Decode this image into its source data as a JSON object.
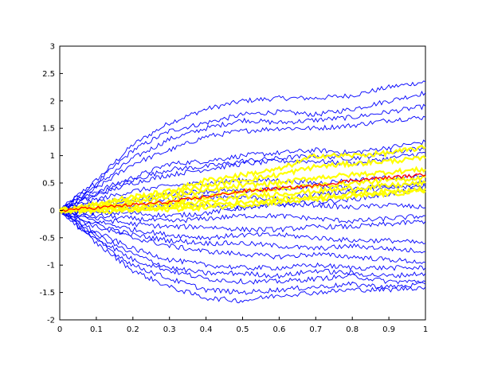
{
  "chart_data": {
    "type": "line",
    "title": "",
    "xlabel": "",
    "ylabel": "",
    "xlim": [
      0,
      1
    ],
    "ylim": [
      -2,
      3
    ],
    "grid": false,
    "legend": "none",
    "x_ticks": [
      0,
      0.1,
      0.2,
      0.3,
      0.4,
      0.5,
      0.6,
      0.7,
      0.8,
      0.9,
      1
    ],
    "x_tick_labels": [
      "0",
      "0.1",
      "0.2",
      "0.3",
      "0.4",
      "0.5",
      "0.6",
      "0.7",
      "0.8",
      "0.9",
      "1"
    ],
    "y_ticks": [
      -2,
      -1.5,
      -1,
      -0.5,
      0,
      0.5,
      1,
      1.5,
      2,
      2.5,
      3
    ],
    "y_tick_labels": [
      "-2",
      "-1.5",
      "-1",
      "-0.5",
      "0",
      "0.5",
      "1",
      "1.5",
      "2",
      "2.5",
      "3"
    ],
    "x": [
      0,
      0.1,
      0.2,
      0.3,
      0.4,
      0.5,
      0.6,
      0.7,
      0.8,
      0.9,
      1.0
    ],
    "series": [
      {
        "group": "blue-bundle",
        "color": "#0000ff",
        "values": [
          0,
          0.55,
          1.2,
          1.6,
          1.85,
          2.0,
          2.05,
          2.05,
          2.1,
          2.25,
          2.35
        ]
      },
      {
        "group": "blue-bundle",
        "color": "#0000ff",
        "values": [
          0,
          0.5,
          1.1,
          1.45,
          1.6,
          1.75,
          1.8,
          1.75,
          1.85,
          2.0,
          2.15
        ]
      },
      {
        "group": "blue-bundle",
        "color": "#0000ff",
        "values": [
          0,
          0.45,
          0.95,
          1.3,
          1.5,
          1.65,
          1.6,
          1.65,
          1.7,
          1.8,
          1.9
        ]
      },
      {
        "group": "blue-bundle",
        "color": "#0000ff",
        "values": [
          0,
          0.4,
          0.85,
          1.1,
          1.35,
          1.45,
          1.5,
          1.5,
          1.55,
          1.65,
          1.7
        ]
      },
      {
        "group": "blue-bundle",
        "color": "#0000ff",
        "values": [
          0,
          0.35,
          0.6,
          0.85,
          0.9,
          1.0,
          1.05,
          1.1,
          1.05,
          1.15,
          1.25
        ]
      },
      {
        "group": "blue-bundle",
        "color": "#0000ff",
        "values": [
          0,
          0.3,
          0.55,
          0.75,
          0.8,
          0.9,
          0.95,
          1.0,
          0.95,
          1.05,
          1.15
        ]
      },
      {
        "group": "blue-bundle",
        "color": "#0000ff",
        "values": [
          0,
          0.28,
          0.5,
          0.65,
          0.75,
          0.85,
          0.9,
          0.9,
          0.85,
          0.95,
          1.05
        ]
      },
      {
        "group": "blue-bundle",
        "color": "#0000ff",
        "values": [
          0,
          0.2,
          0.35,
          0.45,
          0.5,
          0.55,
          0.55,
          0.5,
          0.55,
          0.6,
          0.6
        ]
      },
      {
        "group": "blue-bundle",
        "color": "#0000ff",
        "values": [
          0,
          0.15,
          0.2,
          0.3,
          0.35,
          0.35,
          0.4,
          0.45,
          0.4,
          0.45,
          0.5
        ]
      },
      {
        "group": "blue-bundle",
        "color": "#0000ff",
        "values": [
          0,
          0.1,
          0.15,
          0.2,
          0.25,
          0.25,
          0.2,
          0.3,
          0.35,
          0.4,
          0.45
        ]
      },
      {
        "group": "blue-bundle",
        "color": "#0000ff",
        "values": [
          0,
          0.05,
          0.05,
          0.1,
          0.1,
          0.05,
          0.1,
          0.15,
          0.2,
          0.3,
          0.4
        ]
      },
      {
        "group": "blue-bundle",
        "color": "#0000ff",
        "values": [
          0,
          -0.05,
          -0.05,
          -0.1,
          -0.05,
          0.05,
          0.1,
          0.1,
          0.05,
          0.1,
          0.05
        ]
      },
      {
        "group": "blue-bundle",
        "color": "#0000ff",
        "values": [
          0,
          -0.1,
          -0.15,
          -0.2,
          -0.15,
          -0.1,
          -0.1,
          -0.15,
          -0.2,
          -0.15,
          -0.1
        ]
      },
      {
        "group": "blue-bundle",
        "color": "#0000ff",
        "values": [
          0,
          -0.15,
          -0.25,
          -0.3,
          -0.3,
          -0.35,
          -0.35,
          -0.3,
          -0.3,
          -0.25,
          -0.2
        ]
      },
      {
        "group": "blue-bundle",
        "color": "#0000ff",
        "values": [
          0,
          -0.2,
          -0.35,
          -0.45,
          -0.5,
          -0.45,
          -0.45,
          -0.5,
          -0.55,
          -0.55,
          -0.6
        ]
      },
      {
        "group": "blue-bundle",
        "color": "#0000ff",
        "values": [
          0,
          -0.25,
          -0.45,
          -0.55,
          -0.6,
          -0.6,
          -0.65,
          -0.7,
          -0.65,
          -0.7,
          -0.75
        ]
      },
      {
        "group": "blue-bundle",
        "color": "#0000ff",
        "values": [
          0,
          -0.3,
          -0.5,
          -0.65,
          -0.75,
          -0.8,
          -0.85,
          -0.8,
          -0.85,
          -0.9,
          -0.95
        ]
      },
      {
        "group": "blue-bundle",
        "color": "#0000ff",
        "values": [
          0,
          -0.4,
          -0.7,
          -0.9,
          -1.0,
          -1.05,
          -1.05,
          -1.0,
          -1.05,
          -1.05,
          -1.05
        ]
      },
      {
        "group": "blue-bundle",
        "color": "#0000ff",
        "values": [
          0,
          -0.45,
          -0.8,
          -1.05,
          -1.15,
          -1.15,
          -1.2,
          -1.1,
          -1.15,
          -1.2,
          -1.15
        ]
      },
      {
        "group": "blue-bundle",
        "color": "#0000ff",
        "values": [
          0,
          -0.5,
          -0.9,
          -1.1,
          -1.25,
          -1.3,
          -1.3,
          -1.25,
          -1.2,
          -1.3,
          -1.3
        ]
      },
      {
        "group": "blue-bundle",
        "color": "#0000ff",
        "values": [
          0,
          -0.55,
          -1.0,
          -1.25,
          -1.45,
          -1.5,
          -1.45,
          -1.4,
          -1.35,
          -1.4,
          -1.35
        ]
      },
      {
        "group": "blue-bundle",
        "color": "#0000ff",
        "values": [
          0,
          -0.6,
          -1.1,
          -1.4,
          -1.6,
          -1.65,
          -1.55,
          -1.5,
          -1.45,
          -1.45,
          -1.4
        ]
      },
      {
        "group": "yellow-band",
        "color": "#ffff00",
        "values": [
          0,
          0.12,
          0.25,
          0.35,
          0.55,
          0.65,
          0.75,
          1.0,
          1.0,
          1.05,
          1.15
        ]
      },
      {
        "group": "yellow-band",
        "color": "#ffff00",
        "values": [
          0,
          0.1,
          0.2,
          0.3,
          0.45,
          0.55,
          0.65,
          0.8,
          0.85,
          0.9,
          0.95
        ]
      },
      {
        "group": "yellow-band",
        "color": "#ffff00",
        "values": [
          0,
          0.08,
          0.15,
          0.25,
          0.35,
          0.45,
          0.5,
          0.6,
          0.65,
          0.7,
          0.75
        ]
      },
      {
        "group": "yellow-band",
        "color": "#ffff00",
        "values": [
          0,
          0.05,
          0.1,
          0.15,
          0.25,
          0.35,
          0.4,
          0.45,
          0.5,
          0.55,
          0.6
        ]
      },
      {
        "group": "yellow-band",
        "color": "#ffff00",
        "values": [
          0,
          0.03,
          0.05,
          0.1,
          0.15,
          0.25,
          0.3,
          0.35,
          0.4,
          0.45,
          0.5
        ]
      },
      {
        "group": "yellow-band",
        "color": "#ffff00",
        "values": [
          0,
          0.0,
          0.02,
          0.05,
          0.1,
          0.15,
          0.2,
          0.25,
          0.3,
          0.35,
          0.4
        ]
      },
      {
        "group": "yellow-band",
        "color": "#ffff00",
        "values": [
          0,
          -0.02,
          0.0,
          0.02,
          0.05,
          0.1,
          0.15,
          0.2,
          0.25,
          0.3,
          0.35
        ]
      },
      {
        "group": "red-mean",
        "color": "#ff0000",
        "values": [
          0,
          0.05,
          0.1,
          0.15,
          0.25,
          0.35,
          0.4,
          0.45,
          0.55,
          0.6,
          0.65
        ]
      }
    ]
  }
}
